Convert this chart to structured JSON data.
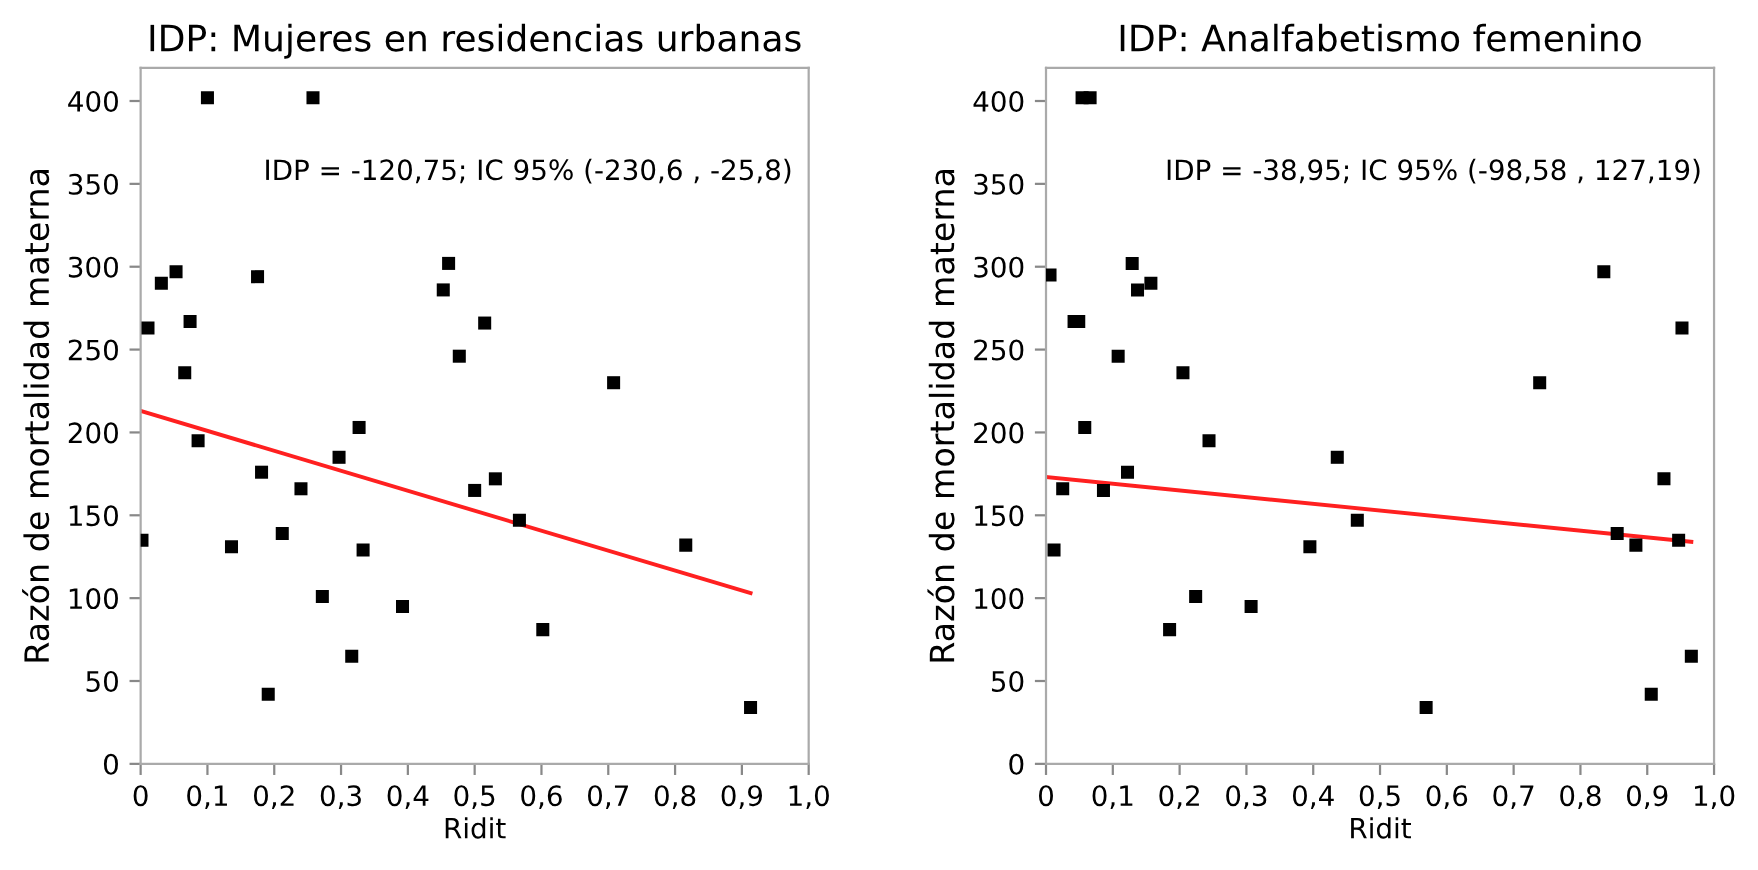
{
  "chart_data": [
    {
      "type": "scatter",
      "title": "IDP: Mujeres en residencias urbanas",
      "xlabel": "Ridit",
      "ylabel": "Razón de mortalidad materna",
      "annotations": [
        "IDP = -120,75; IC 95% (-230,6 , -25,8)"
      ],
      "xlim": [
        0,
        1.0
      ],
      "xticks": [
        {
          "value": 0,
          "label": "0"
        },
        {
          "value": 0.1,
          "label": "0,1"
        },
        {
          "value": 0.2,
          "label": "0,2"
        },
        {
          "value": 0.3,
          "label": "0,3"
        },
        {
          "value": 0.4,
          "label": "0,4"
        },
        {
          "value": 0.5,
          "label": "0,5"
        },
        {
          "value": 0.6,
          "label": "0,6"
        },
        {
          "value": 0.7,
          "label": "0,7"
        },
        {
          "value": 0.8,
          "label": "0,8"
        },
        {
          "value": 0.9,
          "label": "0,9"
        },
        {
          "value": 1.0,
          "label": "1,0"
        }
      ],
      "ylim": [
        0,
        420
      ],
      "yticks": [
        0,
        50,
        100,
        150,
        200,
        250,
        300,
        350,
        400
      ],
      "grid": false,
      "legend": false,
      "series": [
        {
          "marker": "square",
          "color": "#000000",
          "x": [
            0.1,
            0.258,
            0.011,
            0.031,
            0.053,
            0.175,
            0.074,
            0.066,
            0.086,
            0.002,
            0.136,
            0.181,
            0.212,
            0.24,
            0.191,
            0.272,
            0.297,
            0.327,
            0.333,
            0.316,
            0.392,
            0.453,
            0.461,
            0.515,
            0.477,
            0.5,
            0.531,
            0.567,
            0.602,
            0.708,
            0.816,
            0.913
          ],
          "values": [
            402,
            402,
            263,
            290,
            297,
            294,
            267,
            236,
            195,
            135,
            131,
            176,
            139,
            166,
            42,
            101,
            185,
            203,
            129,
            65,
            95,
            286,
            302,
            266,
            246,
            165,
            172,
            147,
            81,
            230,
            132,
            34
          ]
        },
        {
          "type": "line",
          "marker": "none",
          "color": "#ff2020",
          "x": [
            0,
            0.913
          ],
          "values": [
            213,
            103
          ]
        }
      ]
    },
    {
      "type": "scatter",
      "title": "IDP: Analfabetismo femenino",
      "xlabel": "Ridit",
      "ylabel": "Razón de mortalidad materna",
      "annotations": [
        "IDP = -38,95; IC 95% (-98,58 , 127,19)"
      ],
      "xlim": [
        0,
        1.0
      ],
      "xticks": [
        {
          "value": 0,
          "label": "0"
        },
        {
          "value": 0.1,
          "label": "0,1"
        },
        {
          "value": 0.2,
          "label": "0,2"
        },
        {
          "value": 0.3,
          "label": "0,3"
        },
        {
          "value": 0.4,
          "label": "0,4"
        },
        {
          "value": 0.5,
          "label": "0,5"
        },
        {
          "value": 0.6,
          "label": "0,6"
        },
        {
          "value": 0.7,
          "label": "0,7"
        },
        {
          "value": 0.8,
          "label": "0,8"
        },
        {
          "value": 0.9,
          "label": "0,9"
        },
        {
          "value": 1.0,
          "label": "1,0"
        }
      ],
      "ylim": [
        0,
        420
      ],
      "yticks": [
        0,
        50,
        100,
        150,
        200,
        250,
        300,
        350,
        400
      ],
      "grid": false,
      "legend": false,
      "series": [
        {
          "marker": "square",
          "color": "#000000",
          "x": [
            0.006,
            0.012,
            0.025,
            0.042,
            0.049,
            0.054,
            0.066,
            0.058,
            0.086,
            0.108,
            0.122,
            0.129,
            0.137,
            0.157,
            0.185,
            0.205,
            0.224,
            0.244,
            0.307,
            0.395,
            0.436,
            0.466,
            0.569,
            0.739,
            0.835,
            0.855,
            0.883,
            0.906,
            0.947,
            0.925,
            0.952,
            0.966
          ],
          "values": [
            295,
            129,
            166,
            267,
            267,
            402,
            402,
            203,
            165,
            246,
            176,
            302,
            286,
            290,
            81,
            236,
            101,
            195,
            95,
            131,
            185,
            147,
            34,
            230,
            297,
            139,
            132,
            42,
            135,
            172,
            263,
            65
          ]
        },
        {
          "type": "line",
          "marker": "none",
          "color": "#ff2020",
          "x": [
            0.003,
            0.966
          ],
          "values": [
            173,
            134
          ]
        }
      ]
    }
  ]
}
